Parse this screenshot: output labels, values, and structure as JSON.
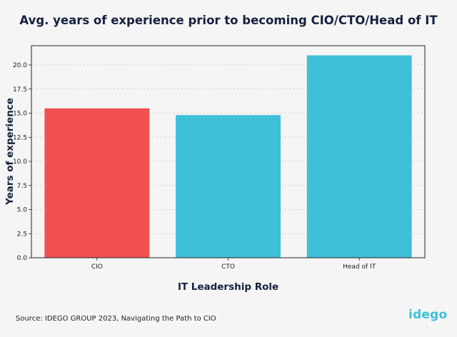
{
  "chart_data": {
    "type": "bar",
    "title": "Avg. years of experience prior to becoming CIO/CTO/Head of IT",
    "xlabel": "IT Leadership Role",
    "ylabel": "Years of experience",
    "categories": [
      "CIO",
      "CTO",
      "Head of IT"
    ],
    "values": [
      15.5,
      14.8,
      21.0
    ],
    "colors": [
      "#f05052",
      "#3ec0d9",
      "#3ec0d9"
    ],
    "ylim": [
      0,
      22
    ],
    "yticks": [
      "0.0",
      "2.5",
      "5.0",
      "7.5",
      "10.0",
      "12.5",
      "15.0",
      "17.5",
      "20.0"
    ],
    "grid": "y-dashed",
    "legend": "none"
  },
  "footer": {
    "source": "Source: IDEGO GROUP 2023, Navigating the Path to CIO",
    "logo": "idego"
  }
}
